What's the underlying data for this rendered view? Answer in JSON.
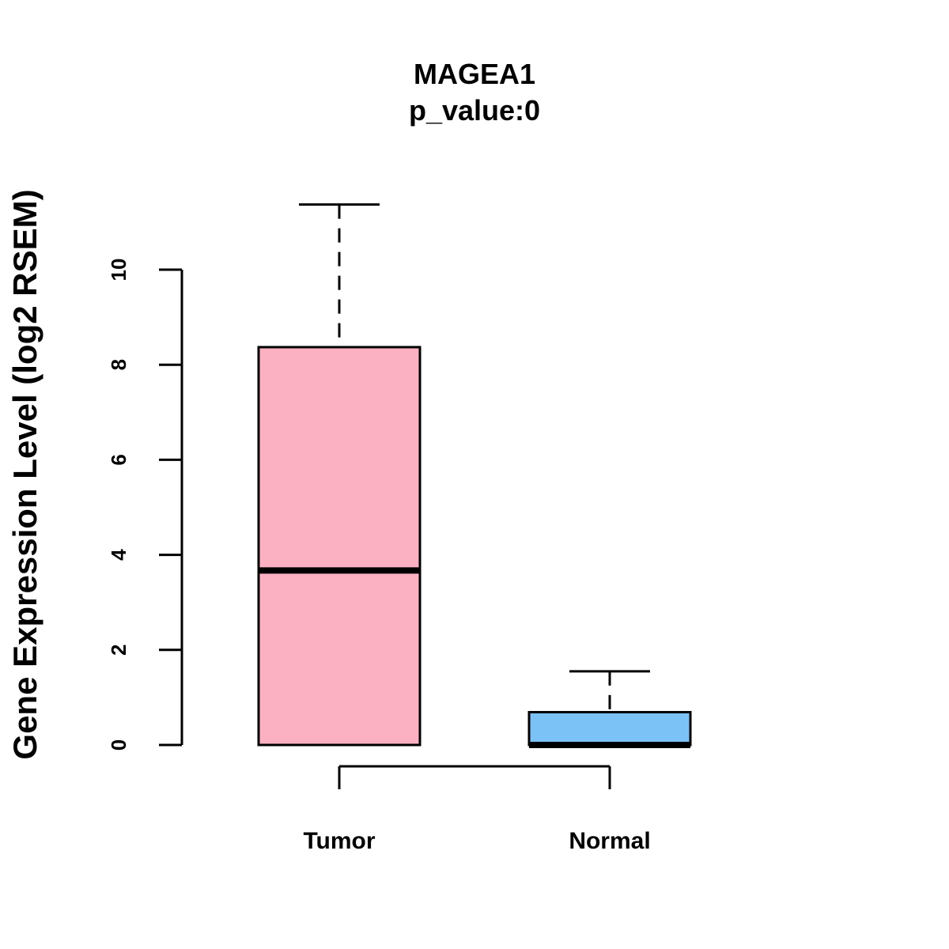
{
  "chart_data": {
    "type": "boxplot",
    "title": "MAGEA1",
    "subtitle": "p_value:0",
    "ylabel": "Gene Expression Level (log2 RSEM)",
    "xlabel": "",
    "ylim": [
      0,
      10
    ],
    "yticks": [
      0,
      2,
      4,
      6,
      8,
      10
    ],
    "categories": [
      "Tumor",
      "Normal"
    ],
    "series": [
      {
        "name": "Tumor",
        "color": "#FBB1C2",
        "whisker_low": 0,
        "q1": 0,
        "median": 3.67,
        "q3": 8.37,
        "whisker_high": 11.37
      },
      {
        "name": "Normal",
        "color": "#7BC3F7",
        "whisker_low": 0,
        "q1": 0,
        "median": 0,
        "q3": 0.69,
        "whisker_high": 1.55
      }
    ],
    "grid": false,
    "legend": "none"
  }
}
